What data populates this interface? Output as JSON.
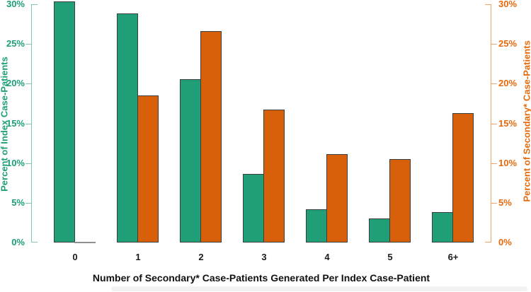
{
  "chart_data": {
    "type": "bar",
    "grouping": "side-by-side pairs per category",
    "title": "",
    "xlabel": "Number of Secondary* Case-Patients Generated Per Index Case-Patient",
    "ylabel_left": "Percent of Index Case-Patients",
    "ylabel_right": "Percent of Secondary* Case-Patients",
    "categories": [
      "0",
      "1",
      "2",
      "3",
      "4",
      "5",
      "6+"
    ],
    "series": [
      {
        "name": "Percent of Index Case-Patients",
        "axis": "left",
        "values": [
          30.4,
          28.8,
          20.6,
          8.6,
          4.2,
          3.0,
          3.8
        ]
      },
      {
        "name": "Percent of Secondary* Case-Patients",
        "axis": "right",
        "values": [
          0,
          18.5,
          26.6,
          16.7,
          11.1,
          10.5,
          16.3
        ]
      }
    ],
    "ylim": [
      0,
      30
    ],
    "y_tick_step": 5,
    "y_tick_labels": [
      "0%",
      "5%",
      "10%",
      "15%",
      "20%",
      "25%",
      "30%"
    ],
    "grid": false,
    "legend": "none",
    "colors": {
      "index_bar": "#1f9e78",
      "secondary_bar": "#d9600a",
      "bar_outline": "#3a3f3e",
      "zero_bar_line": "#8f8f8f",
      "left_axis_text": "#1d9e77",
      "right_axis_text": "#e56a0d",
      "left_axis_line": "#7cc9ad",
      "right_axis_line": "#f3a468",
      "x_text": "#1a1a1a"
    }
  }
}
